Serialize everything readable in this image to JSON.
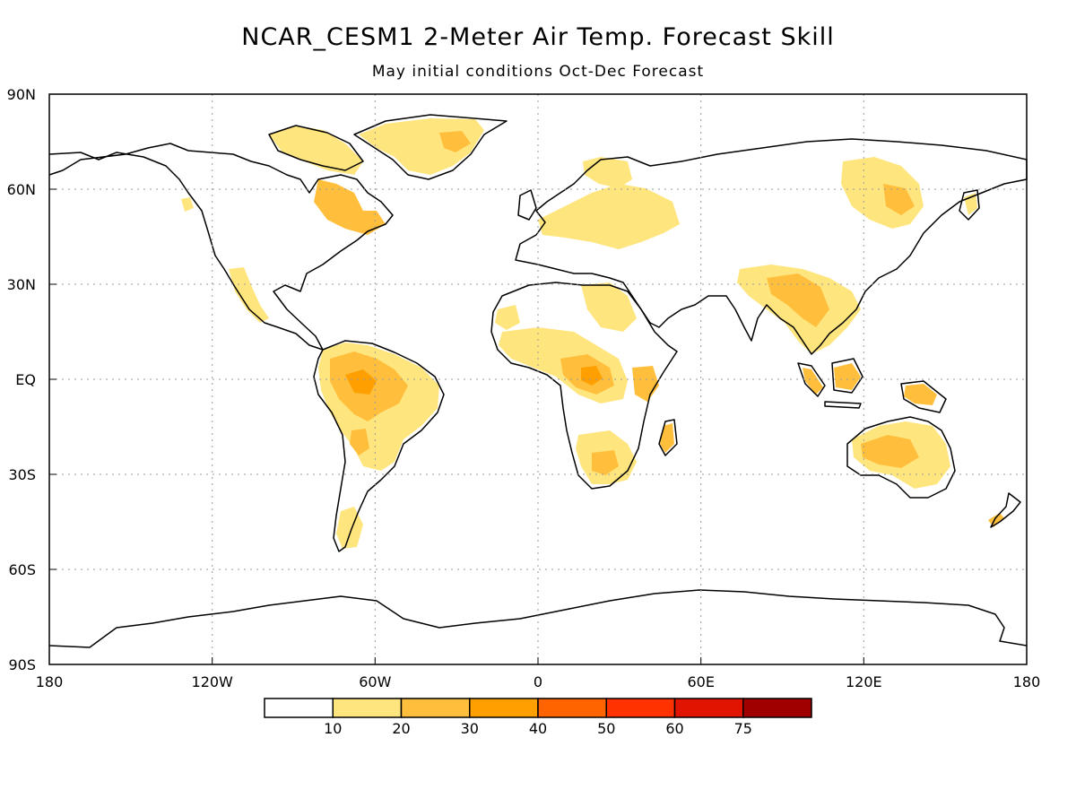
{
  "title": "NCAR_CESM1 2-Meter Air Temp. Forecast Skill",
  "subtitle": "May initial conditions  Oct-Dec Forecast",
  "lat_ticks": [
    "90N",
    "60N",
    "30N",
    "EQ",
    "30S",
    "60S",
    "90S"
  ],
  "lon_ticks": [
    "180",
    "120W",
    "60W",
    "0",
    "60E",
    "120E",
    "180"
  ],
  "legend": {
    "labels": [
      "10",
      "20",
      "30",
      "40",
      "50",
      "60",
      "75"
    ],
    "colors": [
      "#ffffff",
      "#ffe57e",
      "#ffbf3c",
      "#ff9f00",
      "#ff6400",
      "#ff3200",
      "#e01400",
      "#a00000"
    ]
  },
  "colors": {
    "skill_10_20": "#ffe57e",
    "skill_20_30": "#ffbf3c",
    "skill_30_40": "#ff9f00",
    "coastline": "#000000",
    "grid": "#999999"
  }
}
